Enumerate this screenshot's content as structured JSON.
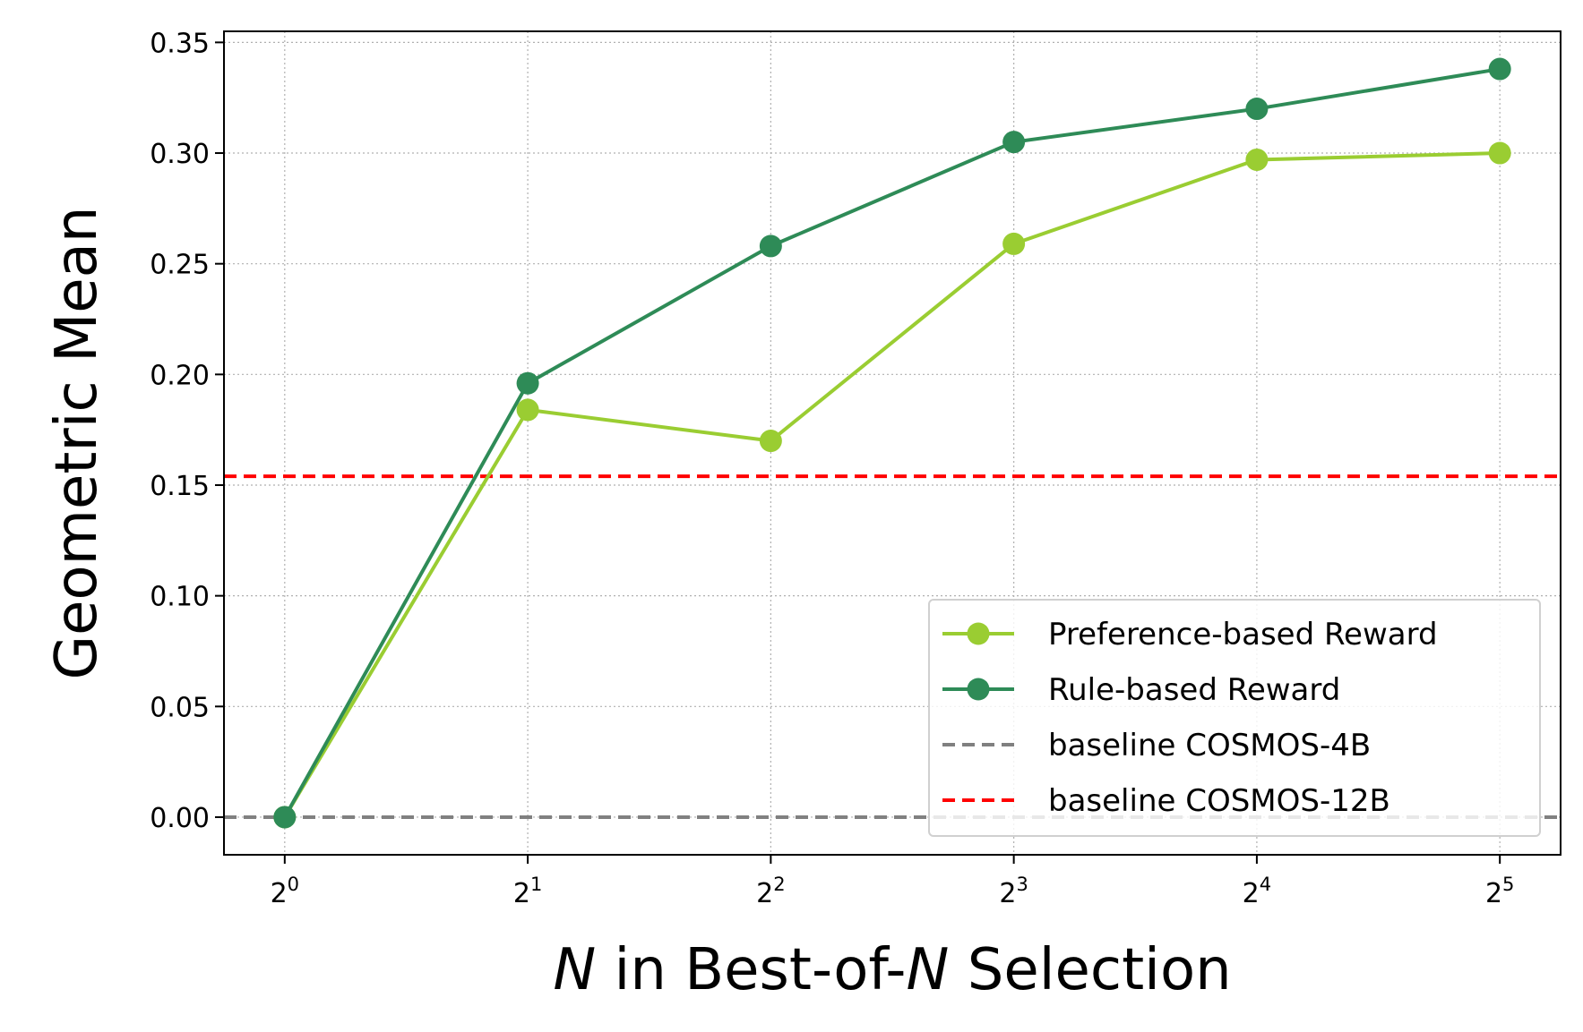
{
  "chart_data": {
    "type": "line",
    "xlabel_parts": {
      "var1": "N",
      "middle": " in Best-of-",
      "var2": "N",
      "suffix": " Selection"
    },
    "ylabel": "Geometric Mean",
    "x": [
      0,
      1,
      2,
      3,
      4,
      5
    ],
    "x_tick_labels": [
      {
        "base": "2",
        "exp": "0"
      },
      {
        "base": "2",
        "exp": "1"
      },
      {
        "base": "2",
        "exp": "2"
      },
      {
        "base": "2",
        "exp": "3"
      },
      {
        "base": "2",
        "exp": "4"
      },
      {
        "base": "2",
        "exp": "5"
      }
    ],
    "y_ticks": [
      "0.00",
      "0.05",
      "0.10",
      "0.15",
      "0.20",
      "0.25",
      "0.30",
      "0.35"
    ],
    "ylim": [
      -0.017,
      0.355
    ],
    "xlim": [
      -0.25,
      5.25
    ],
    "grid": true,
    "legend_position": "bottom-right",
    "series": [
      {
        "name": "Preference-based Reward",
        "color": "#9acd32",
        "marker": "circle",
        "style": "solid",
        "values": [
          0.0,
          0.184,
          0.17,
          0.259,
          0.297,
          0.3
        ]
      },
      {
        "name": "Rule-based Reward",
        "color": "#2e8b57",
        "marker": "circle",
        "style": "solid",
        "values": [
          0.0,
          0.196,
          0.258,
          0.305,
          0.32,
          0.338
        ]
      }
    ],
    "reference_lines": [
      {
        "name": "baseline COSMOS-4B",
        "color": "#808080",
        "style": "dashed",
        "value": 0.0
      },
      {
        "name": "baseline COSMOS-12B",
        "color": "#ff0000",
        "style": "dashed",
        "value": 0.154
      }
    ]
  }
}
